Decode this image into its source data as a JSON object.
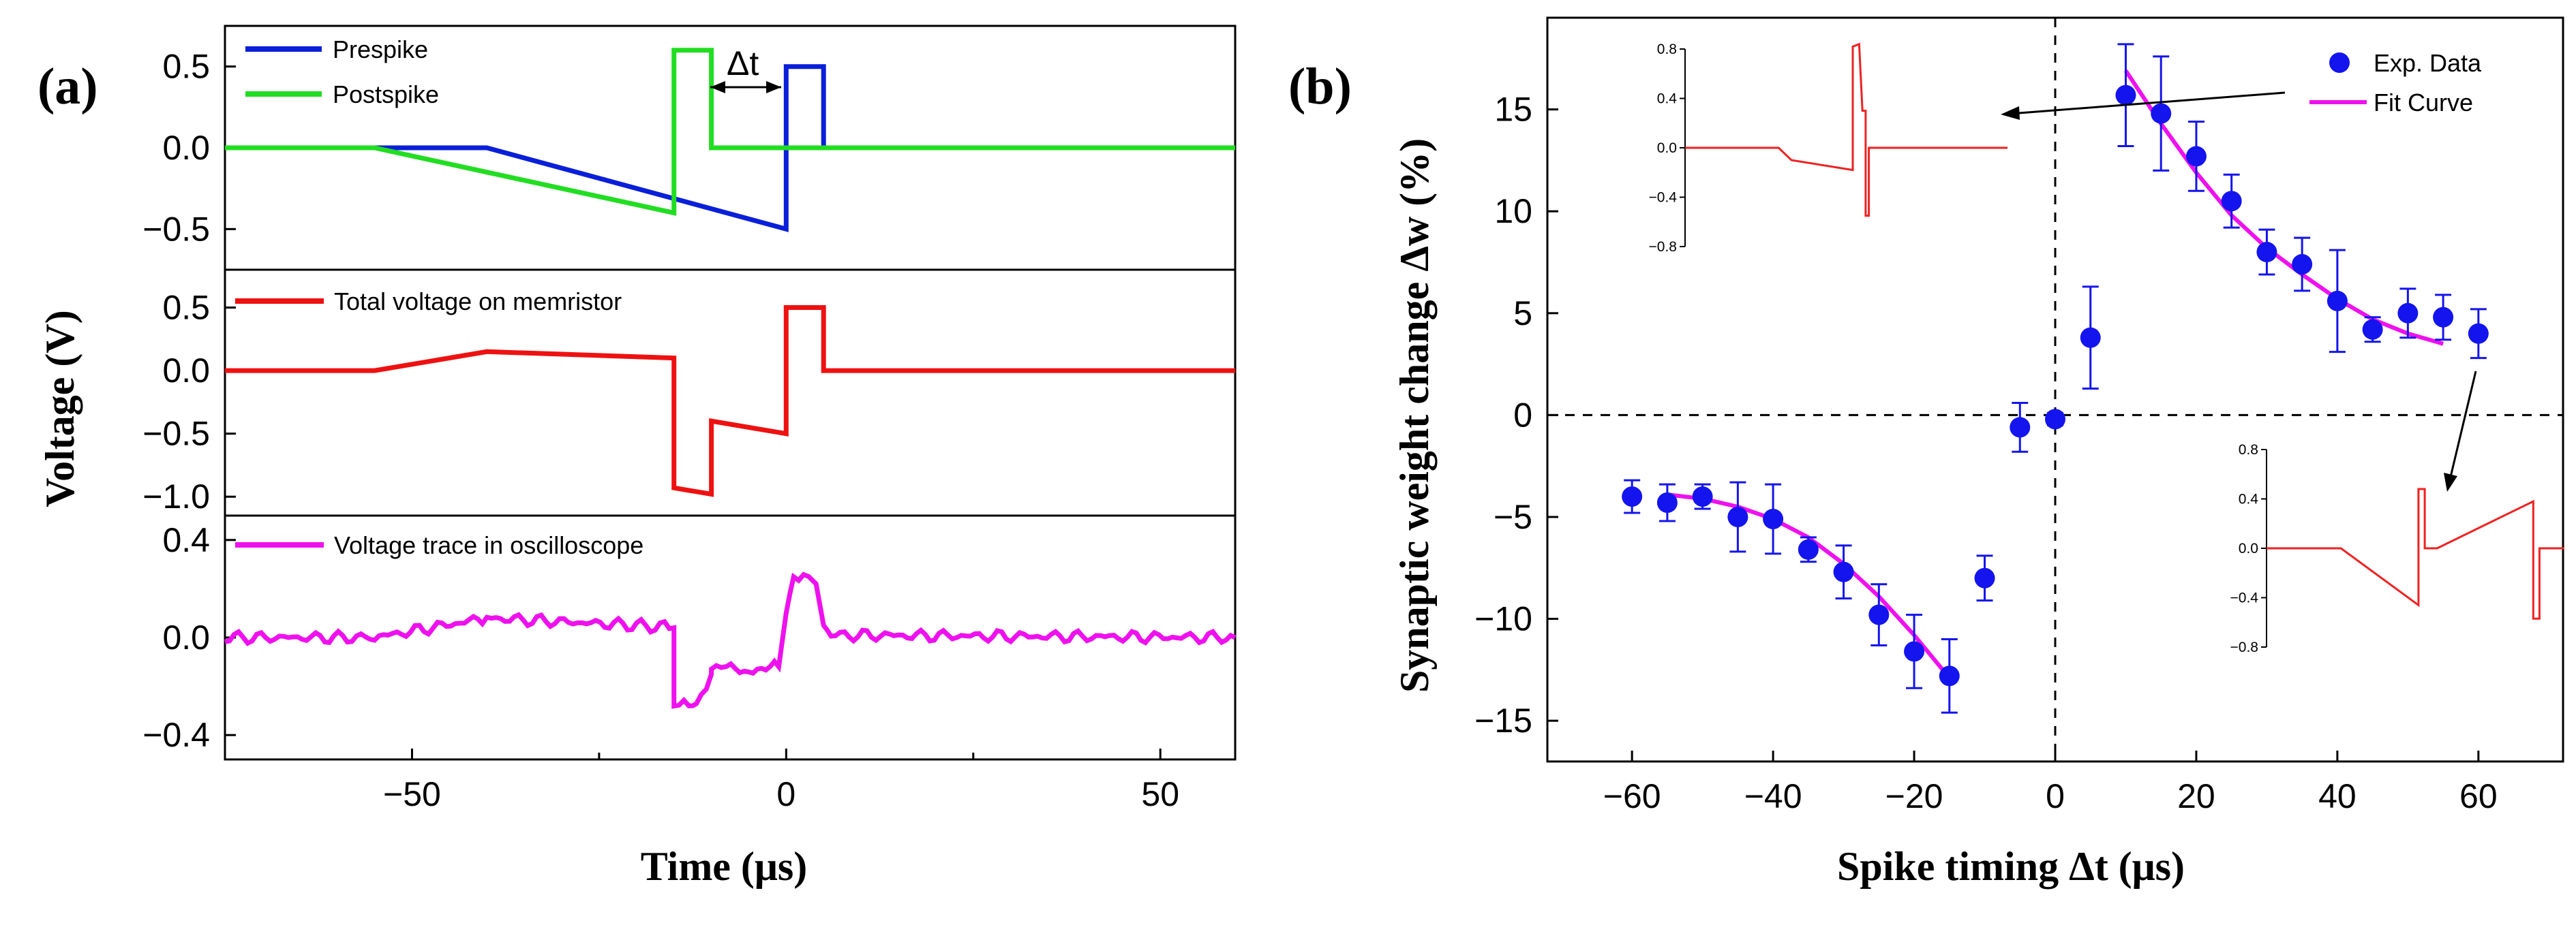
{
  "panel_a": {
    "label": "(a)",
    "xlabel": "Time (μs)",
    "ylabel": "Voltage (V)",
    "delta_t_label": "Δt"
  },
  "panel_b": {
    "label": "(b)",
    "xlabel": "Spike timing Δt (μs)",
    "ylabel": "Synaptic weight change Δw (%)"
  },
  "chart_data": [
    {
      "id": "a-top",
      "type": "line",
      "xlim": [
        -75,
        60
      ],
      "ylim": [
        -0.75,
        0.75
      ],
      "xticks": [
        -50,
        0,
        50
      ],
      "yticks": [
        0.5,
        0.0,
        -0.5
      ],
      "ytick_labels": [
        "0.5",
        "0.0",
        "−0.5"
      ],
      "series": [
        {
          "name": "Prespike",
          "color": "#0a1fd8",
          "x": [
            -75,
            -40,
            0,
            0,
            5,
            5,
            60
          ],
          "y": [
            0,
            0,
            -0.5,
            0.5,
            0.5,
            0,
            0
          ]
        },
        {
          "name": "Postspike",
          "color": "#22dd22",
          "x": [
            -75,
            -55,
            -15,
            -15,
            -10,
            -10,
            60
          ],
          "y": [
            0,
            0,
            -0.4,
            0.6,
            0.6,
            0,
            0
          ]
        }
      ]
    },
    {
      "id": "a-mid",
      "type": "line",
      "xlim": [
        -75,
        60
      ],
      "ylim": [
        -1.15,
        0.8
      ],
      "yticks": [
        0.5,
        0.0,
        -0.5,
        -1.0
      ],
      "ytick_labels": [
        "0.5",
        "0.0",
        "−0.5",
        "−1.0"
      ],
      "series": [
        {
          "name": "Total voltage on memristor",
          "color": "#ee1111",
          "x": [
            -75,
            -55,
            -40,
            -15,
            -15,
            -10,
            -10,
            0,
            0,
            5,
            5,
            60
          ],
          "y": [
            0,
            0,
            0.15,
            0.1,
            -0.93,
            -0.98,
            -0.4,
            -0.5,
            0.5,
            0.5,
            0,
            0
          ]
        }
      ]
    },
    {
      "id": "a-bot",
      "type": "line",
      "xlim": [
        -75,
        60
      ],
      "ylim": [
        -0.5,
        0.5
      ],
      "yticks": [
        0.4,
        0.0,
        -0.4
      ],
      "ytick_labels": [
        "0.4",
        "0.0",
        "−0.4"
      ],
      "series": [
        {
          "name": "Voltage trace in oscilloscope",
          "color": "#ee11ee",
          "x": [
            -75,
            -55,
            -40,
            -20,
            -15,
            -15,
            -13,
            -12,
            -10,
            -10,
            -8,
            -5,
            -1,
            0,
            1,
            3,
            4,
            5,
            6,
            60
          ],
          "y": [
            0,
            0.0,
            0.08,
            0.05,
            0.04,
            -0.27,
            -0.28,
            -0.28,
            -0.15,
            -0.12,
            -0.13,
            -0.13,
            -0.12,
            0.1,
            0.26,
            0.25,
            0.22,
            0.05,
            0.01,
            0
          ]
        }
      ]
    },
    {
      "id": "b-main",
      "type": "scatter",
      "xlim": [
        -72,
        72
      ],
      "ylim": [
        -17,
        19.5
      ],
      "xticks": [
        -60,
        -40,
        -20,
        0,
        20,
        40,
        60
      ],
      "yticks": [
        15,
        10,
        5,
        0,
        -5,
        -10,
        -15
      ],
      "ytick_labels": [
        "15",
        "10",
        "5",
        "0",
        "−5",
        "−10",
        "−15"
      ],
      "xtick_labels": [
        "−60",
        "−40",
        "−20",
        "0",
        "20",
        "40",
        "60"
      ],
      "legend": "top-right",
      "series": [
        {
          "name": "Exp. Data",
          "color": "#1414ee",
          "x": [
            -60,
            -55,
            -50,
            -45,
            -40,
            -35,
            -30,
            -25,
            -20,
            -15,
            -10,
            -5,
            0,
            5,
            10,
            15,
            20,
            25,
            30,
            35,
            40,
            45,
            50,
            55,
            60
          ],
          "y": [
            -4.0,
            -4.3,
            -4.0,
            -5.0,
            -5.1,
            -6.6,
            -7.7,
            -9.8,
            -11.6,
            -12.8,
            -8.0,
            -0.6,
            -0.2,
            3.8,
            15.7,
            14.8,
            12.7,
            10.5,
            8.0,
            7.4,
            5.6,
            4.2,
            5.0,
            4.8,
            4.0
          ],
          "err": [
            0.8,
            0.9,
            0.6,
            1.7,
            1.7,
            0.6,
            1.3,
            1.5,
            1.8,
            1.8,
            1.1,
            1.2,
            0.3,
            2.5,
            2.5,
            2.8,
            1.7,
            1.3,
            1.1,
            1.3,
            2.5,
            0.6,
            1.2,
            1.1,
            1.2
          ]
        },
        {
          "name": "Fit Curve",
          "color": "#ee11ee",
          "segments": [
            {
              "x": [
                -55,
                -50,
                -45,
                -40,
                -35,
                -30,
                -25,
                -20,
                -15
              ],
              "y": [
                -3.9,
                -4.1,
                -4.5,
                -5.1,
                -6.0,
                -7.3,
                -8.9,
                -10.8,
                -12.9
              ]
            },
            {
              "x": [
                10,
                15,
                20,
                25,
                30,
                35,
                40,
                45,
                50,
                55
              ],
              "y": [
                16.9,
                14.3,
                11.9,
                9.8,
                8.2,
                6.9,
                5.7,
                4.7,
                4.0,
                3.5
              ]
            }
          ]
        }
      ]
    },
    {
      "id": "b-inset-left",
      "type": "line",
      "ylim": [
        -0.8,
        0.8
      ],
      "yticks": [
        0.8,
        0.4,
        0.0,
        -0.4,
        -0.8
      ],
      "ytick_labels": [
        "0.8",
        "0.4",
        "0.0",
        "−0.4",
        "−0.8"
      ],
      "series": [
        {
          "name": "inset pulse (negative Δt)",
          "color": "#ee2222"
        }
      ]
    },
    {
      "id": "b-inset-right",
      "type": "line",
      "ylim": [
        -0.8,
        0.8
      ],
      "yticks": [
        0.8,
        0.4,
        0.0,
        -0.4,
        -0.8
      ],
      "ytick_labels": [
        "0.8",
        "0.4",
        "0.0",
        "−0.4",
        "−0.8"
      ],
      "series": [
        {
          "name": "inset pulse (positive Δt)",
          "color": "#ee2222"
        }
      ]
    }
  ]
}
